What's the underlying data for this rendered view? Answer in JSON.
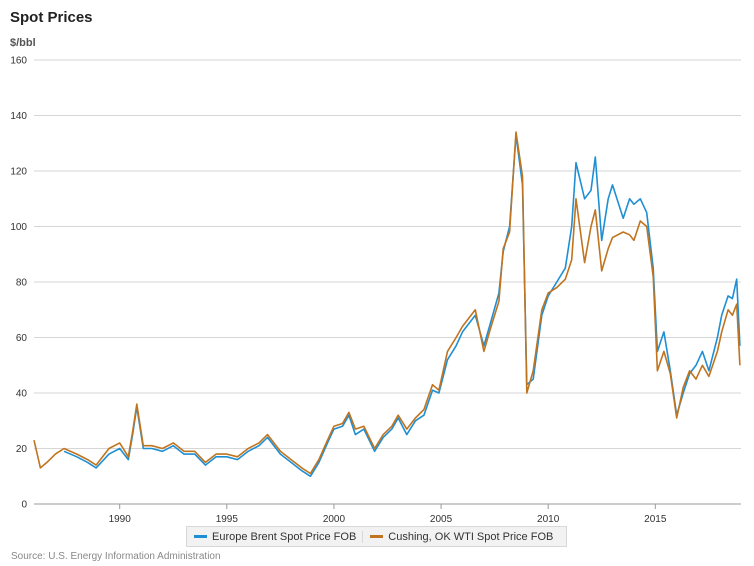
{
  "chart_data": {
    "type": "line",
    "title": "Spot Prices",
    "ylabel": "$/bbl",
    "xlim": [
      1986,
      2019
    ],
    "ylim": [
      0,
      160
    ],
    "y_ticks": [
      "0",
      "20",
      "40",
      "60",
      "80",
      "100",
      "120",
      "140",
      "160"
    ],
    "x_ticks": [
      "1990",
      "1995",
      "2000",
      "2005",
      "2010",
      "2015"
    ],
    "grid": true,
    "legend_position": "bottom-center",
    "series": [
      {
        "name": "Europe Brent Spot Price FOB",
        "color": "#1f8fd4",
        "x": [
          1987.4,
          1988.0,
          1988.5,
          1988.9,
          1989.5,
          1990.0,
          1990.4,
          1990.6,
          1990.8,
          1991.1,
          1991.5,
          1992.0,
          1992.5,
          1993.0,
          1993.5,
          1994.0,
          1994.5,
          1995.0,
          1995.5,
          1996.0,
          1996.5,
          1996.9,
          1997.5,
          1998.0,
          1998.5,
          1998.9,
          1999.3,
          1999.7,
          2000.0,
          2000.4,
          2000.7,
          2001.0,
          2001.4,
          2001.9,
          2002.3,
          2002.7,
          2003.0,
          2003.4,
          2003.8,
          2004.2,
          2004.6,
          2004.9,
          2005.3,
          2005.7,
          2006.0,
          2006.6,
          2007.0,
          2007.3,
          2007.7,
          2007.9,
          2008.2,
          2008.5,
          2008.8,
          2009.0,
          2009.3,
          2009.7,
          2010.0,
          2010.4,
          2010.8,
          2011.1,
          2011.3,
          2011.7,
          2012.0,
          2012.2,
          2012.5,
          2012.8,
          2013.0,
          2013.5,
          2013.8,
          2014.0,
          2014.3,
          2014.6,
          2014.9,
          2015.1,
          2015.4,
          2015.7,
          2016.0,
          2016.3,
          2016.6,
          2016.9,
          2017.2,
          2017.5,
          2017.9,
          2018.1,
          2018.4,
          2018.6,
          2018.8,
          2018.95
        ],
        "values": [
          19,
          17,
          15,
          13,
          18,
          20,
          16,
          25,
          35,
          20,
          20,
          19,
          21,
          18,
          18,
          14,
          17,
          17,
          16,
          19,
          21,
          24,
          18,
          15,
          12,
          10,
          15,
          22,
          27,
          28,
          32,
          25,
          27,
          19,
          24,
          27,
          31,
          25,
          30,
          32,
          41,
          40,
          52,
          57,
          62,
          68,
          57,
          65,
          76,
          91,
          100,
          133,
          115,
          43,
          45,
          68,
          75,
          80,
          85,
          100,
          123,
          110,
          113,
          125,
          95,
          110,
          115,
          103,
          110,
          108,
          110,
          105,
          85,
          55,
          62,
          48,
          32,
          40,
          47,
          50,
          55,
          48,
          60,
          68,
          75,
          74,
          81,
          57
        ]
      },
      {
        "name": "Cushing, OK WTI Spot Price FOB",
        "color": "#c0741f",
        "x": [
          1986.0,
          1986.3,
          1986.6,
          1987.0,
          1987.4,
          1988.0,
          1988.5,
          1988.9,
          1989.5,
          1990.0,
          1990.4,
          1990.6,
          1990.8,
          1991.1,
          1991.5,
          1992.0,
          1992.5,
          1993.0,
          1993.5,
          1994.0,
          1994.5,
          1995.0,
          1995.5,
          1996.0,
          1996.5,
          1996.9,
          1997.5,
          1998.0,
          1998.5,
          1998.9,
          1999.3,
          1999.7,
          2000.0,
          2000.4,
          2000.7,
          2001.0,
          2001.4,
          2001.9,
          2002.3,
          2002.7,
          2003.0,
          2003.4,
          2003.8,
          2004.2,
          2004.6,
          2004.9,
          2005.3,
          2005.7,
          2006.0,
          2006.6,
          2007.0,
          2007.3,
          2007.7,
          2007.9,
          2008.2,
          2008.5,
          2008.8,
          2009.0,
          2009.3,
          2009.7,
          2010.0,
          2010.4,
          2010.8,
          2011.1,
          2011.3,
          2011.7,
          2012.0,
          2012.2,
          2012.5,
          2012.8,
          2013.0,
          2013.5,
          2013.8,
          2014.0,
          2014.3,
          2014.6,
          2014.9,
          2015.1,
          2015.4,
          2015.7,
          2016.0,
          2016.3,
          2016.6,
          2016.9,
          2017.2,
          2017.5,
          2017.9,
          2018.1,
          2018.4,
          2018.6,
          2018.8,
          2018.95
        ],
        "values": [
          23,
          13,
          15,
          18,
          20,
          18,
          16,
          14,
          20,
          22,
          17,
          26,
          36,
          21,
          21,
          20,
          22,
          19,
          19,
          15,
          18,
          18,
          17,
          20,
          22,
          25,
          19,
          16,
          13,
          11,
          16,
          23,
          28,
          29,
          33,
          27,
          28,
          20,
          25,
          28,
          32,
          27,
          31,
          34,
          43,
          41,
          55,
          60,
          64,
          70,
          55,
          63,
          73,
          92,
          98,
          134,
          118,
          40,
          48,
          70,
          76,
          78,
          81,
          88,
          110,
          87,
          100,
          106,
          84,
          92,
          96,
          98,
          97,
          95,
          102,
          100,
          82,
          48,
          55,
          47,
          31,
          42,
          48,
          45,
          50,
          46,
          55,
          62,
          70,
          68,
          72,
          50
        ]
      }
    ]
  },
  "source": "Source: U.S. Energy Information Administration"
}
